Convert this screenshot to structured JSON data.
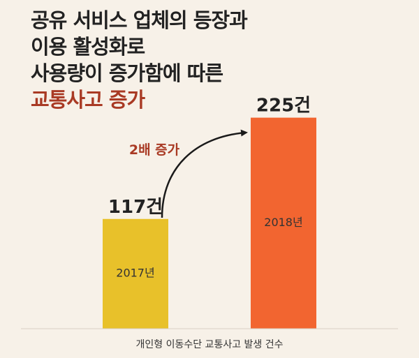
{
  "headline": {
    "lines": [
      "공유 서비스 업체의 등장과",
      "이용 활성화로",
      "사용량이 증가함에 따른"
    ],
    "accent_line": "교통사고 증가"
  },
  "colors": {
    "background": "#f7f1e8",
    "bar_2017": "#e8c12a",
    "bar_2018": "#f26530",
    "accent_text": "#a93a24",
    "text": "#222222"
  },
  "chart_data": {
    "type": "bar",
    "categories": [
      "2017년",
      "2018년"
    ],
    "values": [
      117,
      225
    ],
    "value_labels": [
      "117건",
      "225건"
    ],
    "xlabel": "개인형 이동수단 교통사고 발생 건수",
    "ylabel": "",
    "ylim": [
      0,
      250
    ],
    "annotation": "2배 증가",
    "grid": false
  }
}
